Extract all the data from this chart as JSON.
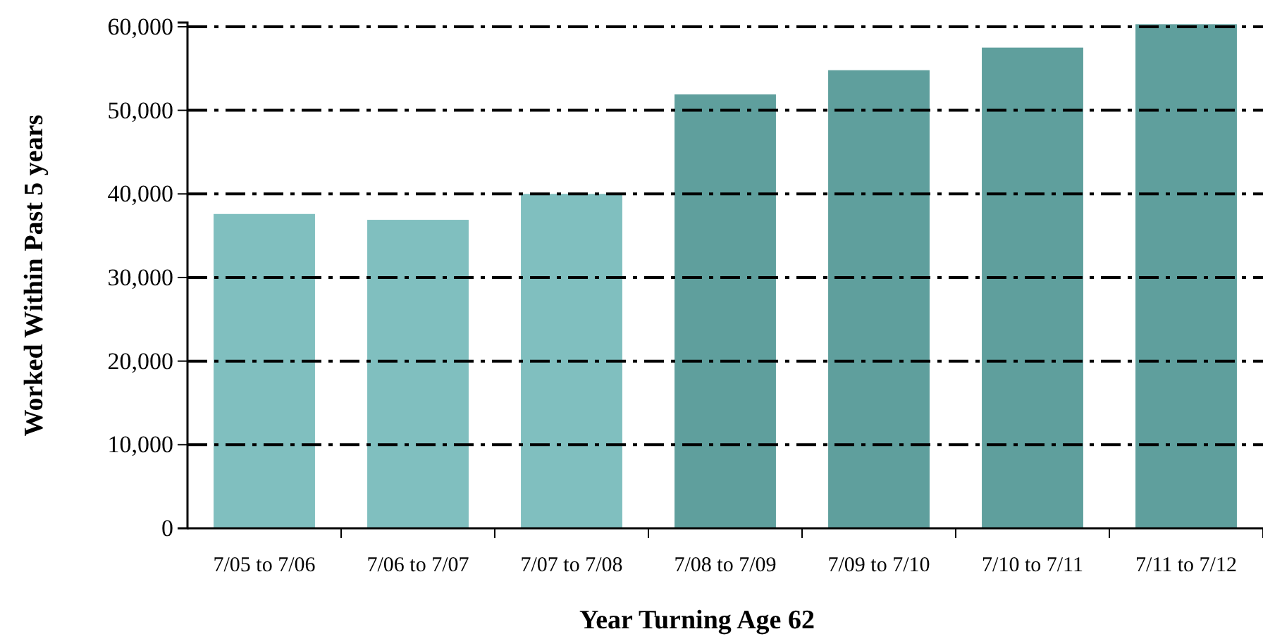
{
  "chart_data": {
    "type": "bar",
    "xlabel": "Year Turning Age 62",
    "ylabel": "Worked Within Past 5 years",
    "categories": [
      "7/05 to 7/06",
      "7/06 to 7/07",
      "7/07 to 7/08",
      "7/08 to 7/09",
      "7/09 to 7/10",
      "7/10 to 7/11",
      "7/11 to 7/12"
    ],
    "values": [
      37600,
      36900,
      40000,
      51900,
      54800,
      57500,
      60300
    ],
    "colors": [
      "#80bfbf",
      "#80bfbf",
      "#80bfbf",
      "#5f9f9d",
      "#5f9f9d",
      "#5f9f9d",
      "#5f9f9d"
    ],
    "ylim": [
      0,
      60500
    ],
    "yticks": [
      {
        "value": 0,
        "label": "0"
      },
      {
        "value": 10000,
        "label": "10,000"
      },
      {
        "value": 20000,
        "label": "20,000"
      },
      {
        "value": 30000,
        "label": "30,000"
      },
      {
        "value": 40000,
        "label": "40,000"
      },
      {
        "value": 50000,
        "label": "50,000"
      },
      {
        "value": 60000,
        "label": "60,000"
      }
    ],
    "grid": "y"
  }
}
